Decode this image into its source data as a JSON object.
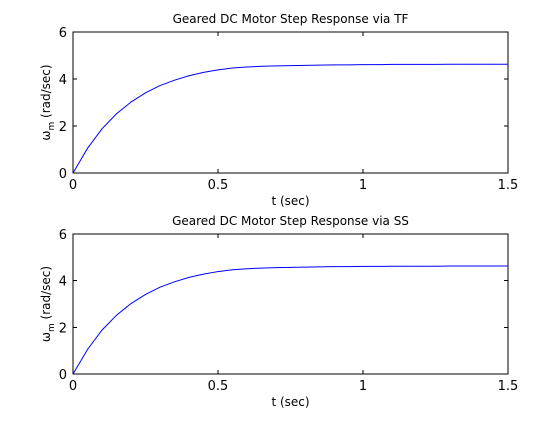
{
  "chart_data": [
    {
      "type": "line",
      "title": "Geared DC Motor Step Response via TF",
      "xlabel": "t (sec)",
      "ylabel_symbol": "ω",
      "ylabel_sub": "m",
      "ylabel_unit": " (rad/sec)",
      "xlim": [
        0,
        1.5
      ],
      "ylim": [
        0,
        6
      ],
      "xticks": [
        0,
        0.5,
        1,
        1.5
      ],
      "xtick_labels": [
        "0",
        "0.5",
        "1",
        "1.5"
      ],
      "yticks": [
        0,
        2,
        4,
        6
      ],
      "ytick_labels": [
        "0",
        "2",
        "4",
        "6"
      ],
      "grid": false,
      "series": [
        {
          "color": "#0000ff",
          "x": [
            0,
            0.05,
            0.1,
            0.15,
            0.2,
            0.25,
            0.3,
            0.35,
            0.4,
            0.45,
            0.5,
            0.55,
            0.6,
            0.65,
            0.7,
            0.75,
            0.8,
            0.85,
            0.9,
            0.95,
            1.0,
            1.05,
            1.1,
            1.15,
            1.2,
            1.25,
            1.3,
            1.35,
            1.4,
            1.45,
            1.5
          ],
          "y": [
            0,
            1.05,
            1.88,
            2.52,
            3.02,
            3.41,
            3.72,
            3.95,
            4.14,
            4.28,
            4.39,
            4.47,
            4.51,
            4.54,
            4.56,
            4.57,
            4.58,
            4.59,
            4.6,
            4.6,
            4.61,
            4.61,
            4.62,
            4.62,
            4.62,
            4.62,
            4.63,
            4.63,
            4.63,
            4.63,
            4.63
          ]
        }
      ]
    },
    {
      "type": "line",
      "title": "Geared DC Motor Step Response via SS",
      "xlabel": "t (sec)",
      "ylabel_symbol": "ω",
      "ylabel_sub": "m",
      "ylabel_unit": " (rad/sec)",
      "xlim": [
        0,
        1.5
      ],
      "ylim": [
        0,
        6
      ],
      "xticks": [
        0,
        0.5,
        1,
        1.5
      ],
      "xtick_labels": [
        "0",
        "0.5",
        "1",
        "1.5"
      ],
      "yticks": [
        0,
        2,
        4,
        6
      ],
      "ytick_labels": [
        "0",
        "2",
        "4",
        "6"
      ],
      "grid": false,
      "series": [
        {
          "color": "#0000ff",
          "x": [
            0,
            0.05,
            0.1,
            0.15,
            0.2,
            0.25,
            0.3,
            0.35,
            0.4,
            0.45,
            0.5,
            0.55,
            0.6,
            0.65,
            0.7,
            0.75,
            0.8,
            0.85,
            0.9,
            0.95,
            1.0,
            1.05,
            1.1,
            1.15,
            1.2,
            1.25,
            1.3,
            1.35,
            1.4,
            1.45,
            1.5
          ],
          "y": [
            0,
            1.05,
            1.88,
            2.52,
            3.02,
            3.41,
            3.72,
            3.95,
            4.14,
            4.28,
            4.39,
            4.47,
            4.51,
            4.54,
            4.56,
            4.57,
            4.58,
            4.59,
            4.6,
            4.6,
            4.61,
            4.61,
            4.62,
            4.62,
            4.62,
            4.62,
            4.63,
            4.63,
            4.63,
            4.63,
            4.63
          ]
        }
      ]
    }
  ]
}
